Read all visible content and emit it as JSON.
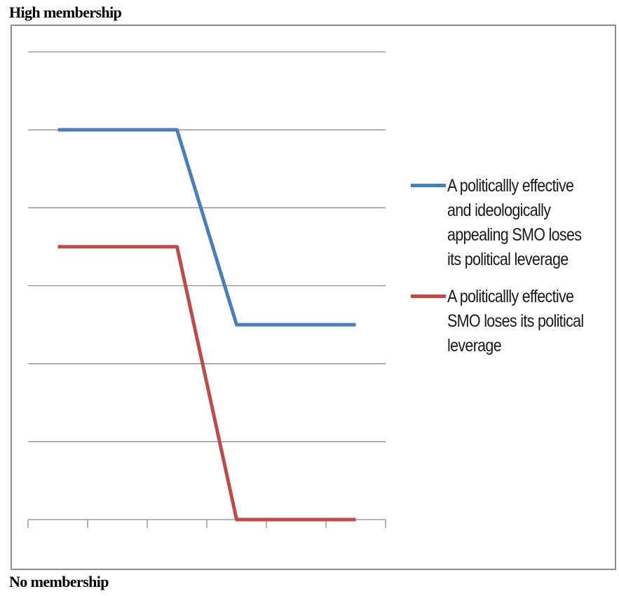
{
  "labels": {
    "top": "High membership",
    "bottom": "No membership"
  },
  "chart_data": {
    "type": "line",
    "x": [
      1,
      2,
      3,
      4,
      5,
      6
    ],
    "ylim": [
      0,
      6
    ],
    "gridlines": [
      1,
      2,
      3,
      4,
      5,
      6
    ],
    "grid": true,
    "legend_position": "right",
    "series": [
      {
        "name": "A politicallly effective and ideologically appealing SMO loses its political leverage",
        "color": "#4a7ebb",
        "points": [
          [
            0.5,
            5
          ],
          [
            2.5,
            5
          ],
          [
            3.5,
            2.5
          ],
          [
            5.5,
            2.5
          ]
        ]
      },
      {
        "name": "A politicallly effective SMO loses its political leverage",
        "color": "#be4b48",
        "points": [
          [
            0.5,
            3.5
          ],
          [
            2.5,
            3.5
          ],
          [
            3.5,
            0
          ],
          [
            5.5,
            0
          ]
        ]
      }
    ]
  }
}
